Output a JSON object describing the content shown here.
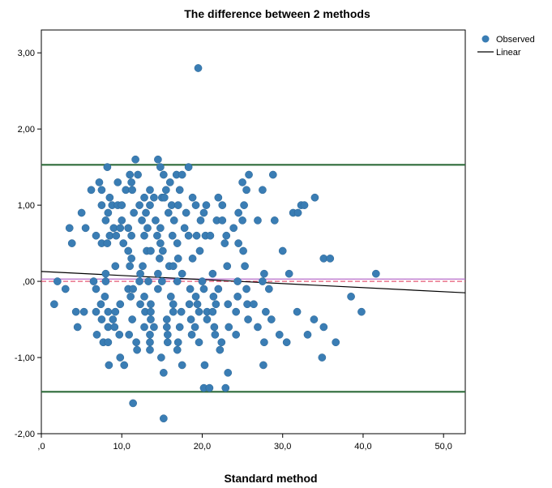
{
  "chart_data": {
    "type": "scatter",
    "title": "The difference between 2 methods",
    "xlabel": "Standard method",
    "ylabel": "",
    "xlim": [
      0,
      52.7
    ],
    "ylim": [
      -2.0,
      3.3
    ],
    "x_ticks": [
      0,
      10,
      20,
      30,
      40,
      50
    ],
    "x_tick_labels": [
      ",0",
      "10,0",
      "20,0",
      "30,0",
      "40,0",
      "50,0"
    ],
    "y_ticks": [
      3,
      2,
      1,
      0,
      -1,
      -2
    ],
    "y_tick_labels": [
      "3,00",
      "2,00",
      "1,00",
      ",00",
      "-1,00",
      "-2,00"
    ],
    "grid": false,
    "legend_position": "top-right",
    "legend": [
      {
        "label": "Observed",
        "kind": "marker",
        "color": "#3a7db4"
      },
      {
        "label": "Linear",
        "kind": "line",
        "color": "#000000"
      }
    ],
    "reference_lines": [
      {
        "y": 1.53,
        "color": "#2e6b3a",
        "style": "solid",
        "role": "upper limit"
      },
      {
        "y": -1.45,
        "color": "#2e6b3a",
        "style": "solid",
        "role": "lower limit"
      },
      {
        "y": 0.03,
        "color": "#b86bc9",
        "style": "solid",
        "role": "mean"
      },
      {
        "y": 0.0,
        "color": "#e04060",
        "style": "dashed",
        "role": "zero"
      }
    ],
    "fit_line": {
      "x": [
        0,
        52.7
      ],
      "y": [
        0.13,
        -0.15
      ],
      "color": "#000000"
    },
    "points": [
      [
        19.5,
        2.8
      ],
      [
        11.7,
        1.6
      ],
      [
        14.5,
        1.6
      ],
      [
        8.2,
        1.5
      ],
      [
        14.8,
        1.5
      ],
      [
        18.3,
        1.5
      ],
      [
        11.0,
        1.4
      ],
      [
        12.0,
        1.4
      ],
      [
        15.2,
        1.4
      ],
      [
        16.8,
        1.4
      ],
      [
        17.5,
        1.4
      ],
      [
        25.8,
        1.4
      ],
      [
        28.8,
        1.4
      ],
      [
        7.2,
        1.3
      ],
      [
        9.5,
        1.3
      ],
      [
        11.2,
        1.3
      ],
      [
        16.0,
        1.3
      ],
      [
        25.0,
        1.3
      ],
      [
        6.2,
        1.2
      ],
      [
        7.5,
        1.2
      ],
      [
        10.5,
        1.2
      ],
      [
        11.3,
        1.2
      ],
      [
        13.5,
        1.2
      ],
      [
        15.5,
        1.2
      ],
      [
        17.2,
        1.2
      ],
      [
        25.5,
        1.2
      ],
      [
        27.5,
        1.2
      ],
      [
        8.5,
        1.1
      ],
      [
        12.8,
        1.1
      ],
      [
        14.0,
        1.1
      ],
      [
        15.0,
        1.1
      ],
      [
        15.3,
        1.1
      ],
      [
        18.8,
        1.1
      ],
      [
        22.0,
        1.1
      ],
      [
        34.0,
        1.1
      ],
      [
        7.5,
        1.0
      ],
      [
        8.8,
        1.0
      ],
      [
        9.5,
        1.0
      ],
      [
        10.0,
        1.0
      ],
      [
        12.2,
        1.0
      ],
      [
        13.5,
        1.0
      ],
      [
        16.2,
        1.0
      ],
      [
        17.0,
        1.0
      ],
      [
        19.2,
        1.0
      ],
      [
        20.5,
        1.0
      ],
      [
        22.5,
        1.0
      ],
      [
        25.2,
        1.0
      ],
      [
        32.3,
        1.0
      ],
      [
        32.7,
        1.0
      ],
      [
        5.0,
        0.9
      ],
      [
        8.3,
        0.9
      ],
      [
        11.5,
        0.9
      ],
      [
        13.0,
        0.9
      ],
      [
        15.8,
        0.9
      ],
      [
        18.0,
        0.9
      ],
      [
        20.2,
        0.9
      ],
      [
        24.5,
        0.9
      ],
      [
        31.3,
        0.9
      ],
      [
        31.9,
        0.9
      ],
      [
        8.0,
        0.8
      ],
      [
        10.0,
        0.8
      ],
      [
        12.5,
        0.8
      ],
      [
        14.2,
        0.8
      ],
      [
        16.5,
        0.8
      ],
      [
        19.8,
        0.8
      ],
      [
        21.8,
        0.8
      ],
      [
        22.5,
        0.8
      ],
      [
        25.0,
        0.8
      ],
      [
        26.9,
        0.8
      ],
      [
        29.0,
        0.8
      ],
      [
        3.5,
        0.7
      ],
      [
        5.5,
        0.7
      ],
      [
        9.0,
        0.7
      ],
      [
        9.8,
        0.7
      ],
      [
        10.8,
        0.7
      ],
      [
        13.2,
        0.7
      ],
      [
        14.8,
        0.7
      ],
      [
        17.8,
        0.7
      ],
      [
        23.9,
        0.7
      ],
      [
        6.8,
        0.6
      ],
      [
        8.5,
        0.6
      ],
      [
        9.3,
        0.6
      ],
      [
        11.2,
        0.6
      ],
      [
        12.8,
        0.6
      ],
      [
        14.4,
        0.6
      ],
      [
        16.3,
        0.6
      ],
      [
        18.3,
        0.6
      ],
      [
        19.3,
        0.6
      ],
      [
        20.4,
        0.6
      ],
      [
        21.0,
        0.6
      ],
      [
        23.0,
        0.6
      ],
      [
        3.8,
        0.5
      ],
      [
        7.5,
        0.5
      ],
      [
        8.2,
        0.5
      ],
      [
        10.2,
        0.5
      ],
      [
        14.8,
        0.5
      ],
      [
        16.9,
        0.5
      ],
      [
        22.8,
        0.5
      ],
      [
        24.5,
        0.5
      ],
      [
        10.8,
        0.4
      ],
      [
        13.1,
        0.4
      ],
      [
        13.6,
        0.4
      ],
      [
        15.1,
        0.4
      ],
      [
        19.7,
        0.4
      ],
      [
        25.1,
        0.4
      ],
      [
        30.0,
        0.4
      ],
      [
        11.2,
        0.3
      ],
      [
        14.7,
        0.3
      ],
      [
        17.0,
        0.3
      ],
      [
        18.8,
        0.3
      ],
      [
        35.1,
        0.3
      ],
      [
        35.9,
        0.3
      ],
      [
        9.2,
        0.2
      ],
      [
        11.0,
        0.2
      ],
      [
        12.6,
        0.2
      ],
      [
        15.9,
        0.2
      ],
      [
        16.4,
        0.2
      ],
      [
        23.1,
        0.2
      ],
      [
        25.3,
        0.2
      ],
      [
        8.0,
        0.1
      ],
      [
        12.3,
        0.1
      ],
      [
        14.5,
        0.1
      ],
      [
        17.5,
        0.1
      ],
      [
        21.3,
        0.1
      ],
      [
        27.7,
        0.1
      ],
      [
        30.8,
        0.1
      ],
      [
        41.6,
        0.1
      ],
      [
        2.0,
        0.0
      ],
      [
        6.5,
        0.0
      ],
      [
        8.0,
        0.0
      ],
      [
        12.2,
        0.0
      ],
      [
        13.3,
        0.0
      ],
      [
        15.0,
        0.0
      ],
      [
        16.9,
        0.0
      ],
      [
        20.0,
        0.0
      ],
      [
        24.4,
        0.0
      ],
      [
        27.5,
        0.0
      ],
      [
        3.0,
        -0.1
      ],
      [
        6.8,
        -0.1
      ],
      [
        10.8,
        -0.1
      ],
      [
        11.4,
        -0.1
      ],
      [
        14.5,
        -0.1
      ],
      [
        18.5,
        -0.1
      ],
      [
        20.2,
        -0.1
      ],
      [
        22.0,
        -0.1
      ],
      [
        25.5,
        -0.1
      ],
      [
        28.3,
        -0.1
      ],
      [
        7.9,
        -0.2
      ],
      [
        11.1,
        -0.2
      ],
      [
        12.8,
        -0.2
      ],
      [
        16.1,
        -0.2
      ],
      [
        19.2,
        -0.2
      ],
      [
        21.4,
        -0.2
      ],
      [
        24.4,
        -0.2
      ],
      [
        38.5,
        -0.2
      ],
      [
        1.6,
        -0.3
      ],
      [
        7.4,
        -0.3
      ],
      [
        9.8,
        -0.3
      ],
      [
        12.3,
        -0.3
      ],
      [
        13.6,
        -0.3
      ],
      [
        16.4,
        -0.3
      ],
      [
        18.4,
        -0.3
      ],
      [
        19.4,
        -0.3
      ],
      [
        21.7,
        -0.3
      ],
      [
        23.2,
        -0.3
      ],
      [
        25.6,
        -0.3
      ],
      [
        26.4,
        -0.3
      ],
      [
        4.3,
        -0.4
      ],
      [
        5.3,
        -0.4
      ],
      [
        6.8,
        -0.4
      ],
      [
        8.3,
        -0.4
      ],
      [
        9.2,
        -0.4
      ],
      [
        12.9,
        -0.4
      ],
      [
        13.6,
        -0.4
      ],
      [
        16.4,
        -0.4
      ],
      [
        17.4,
        -0.4
      ],
      [
        19.6,
        -0.4
      ],
      [
        20.6,
        -0.4
      ],
      [
        21.3,
        -0.4
      ],
      [
        24.2,
        -0.4
      ],
      [
        27.9,
        -0.4
      ],
      [
        31.8,
        -0.4
      ],
      [
        39.8,
        -0.4
      ],
      [
        7.5,
        -0.5
      ],
      [
        8.9,
        -0.5
      ],
      [
        11.3,
        -0.5
      ],
      [
        13.6,
        -0.5
      ],
      [
        15.6,
        -0.5
      ],
      [
        18.6,
        -0.5
      ],
      [
        20.6,
        -0.5
      ],
      [
        25.7,
        -0.5
      ],
      [
        28.6,
        -0.5
      ],
      [
        33.9,
        -0.5
      ],
      [
        4.5,
        -0.6
      ],
      [
        8.3,
        -0.6
      ],
      [
        9.1,
        -0.6
      ],
      [
        12.8,
        -0.6
      ],
      [
        14.0,
        -0.6
      ],
      [
        15.6,
        -0.6
      ],
      [
        17.2,
        -0.6
      ],
      [
        19.1,
        -0.6
      ],
      [
        21.5,
        -0.6
      ],
      [
        23.3,
        -0.6
      ],
      [
        26.9,
        -0.6
      ],
      [
        35.1,
        -0.6
      ],
      [
        6.9,
        -0.7
      ],
      [
        9.7,
        -0.7
      ],
      [
        10.9,
        -0.7
      ],
      [
        13.5,
        -0.7
      ],
      [
        15.7,
        -0.7
      ],
      [
        18.7,
        -0.7
      ],
      [
        21.6,
        -0.7
      ],
      [
        24.2,
        -0.7
      ],
      [
        29.6,
        -0.7
      ],
      [
        33.1,
        -0.7
      ],
      [
        7.7,
        -0.8
      ],
      [
        8.3,
        -0.8
      ],
      [
        11.8,
        -0.8
      ],
      [
        13.5,
        -0.8
      ],
      [
        15.7,
        -0.8
      ],
      [
        17.0,
        -0.8
      ],
      [
        19.6,
        -0.8
      ],
      [
        22.4,
        -0.8
      ],
      [
        27.7,
        -0.8
      ],
      [
        30.5,
        -0.8
      ],
      [
        36.6,
        -0.8
      ],
      [
        11.9,
        -0.9
      ],
      [
        13.5,
        -0.9
      ],
      [
        16.9,
        -0.9
      ],
      [
        22.2,
        -0.9
      ],
      [
        9.8,
        -1.0
      ],
      [
        14.9,
        -1.0
      ],
      [
        34.9,
        -1.0
      ],
      [
        8.4,
        -1.1
      ],
      [
        10.3,
        -1.1
      ],
      [
        17.5,
        -1.1
      ],
      [
        20.3,
        -1.1
      ],
      [
        27.6,
        -1.1
      ],
      [
        15.2,
        -1.2
      ],
      [
        23.2,
        -1.2
      ],
      [
        20.2,
        -1.4
      ],
      [
        20.9,
        -1.4
      ],
      [
        22.9,
        -1.4
      ],
      [
        11.4,
        -1.6
      ],
      [
        15.2,
        -1.8
      ]
    ]
  }
}
